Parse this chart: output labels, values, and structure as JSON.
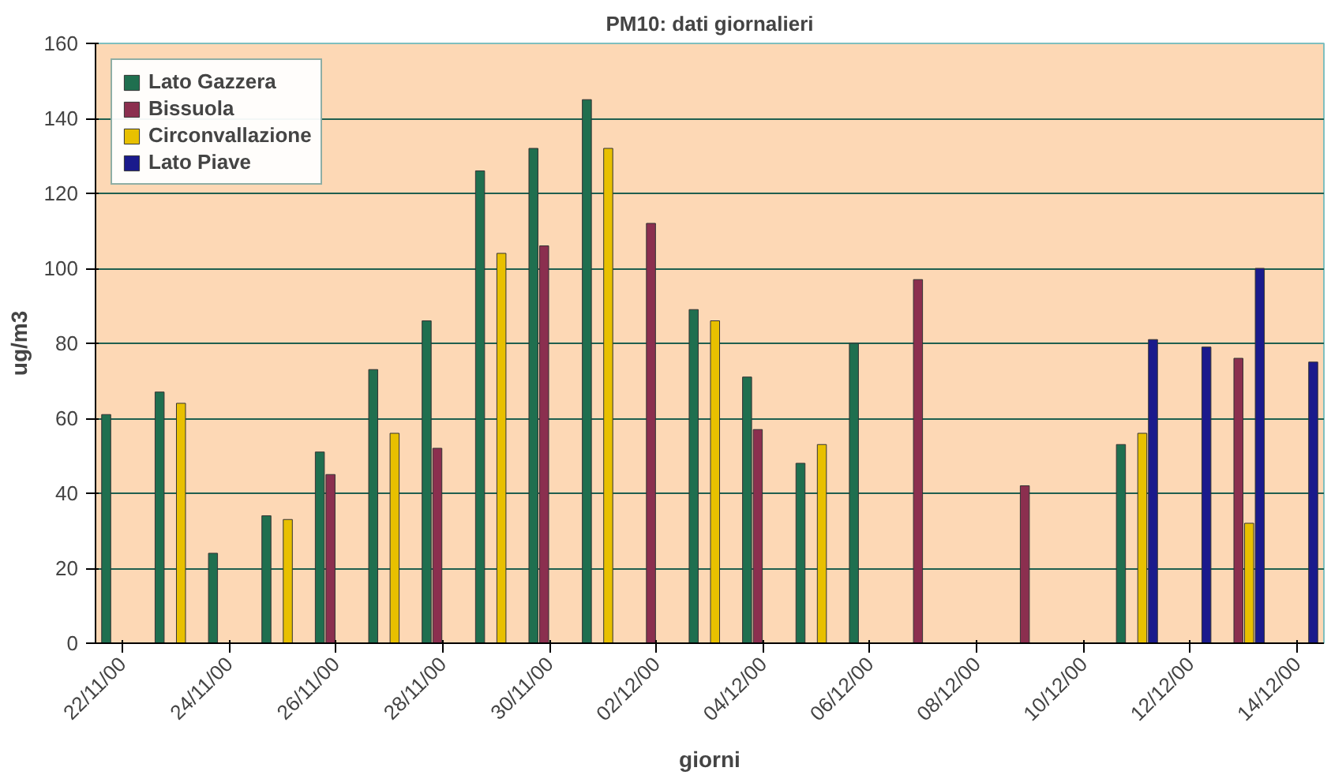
{
  "chart_data": {
    "type": "bar",
    "title": "PM10: dati giornalieri",
    "xlabel": "giorni",
    "ylabel": "ug/m3",
    "categories": [
      "22/11/00",
      null,
      "24/11/00",
      null,
      "26/11/00",
      null,
      "28/11/00",
      null,
      "30/11/00",
      null,
      "02/12/00",
      null,
      "04/12/00",
      null,
      "06/12/00",
      null,
      "08/12/00",
      null,
      "10/12/00",
      null,
      "12/12/00",
      null,
      "14/12/00"
    ],
    "series": [
      {
        "name": "Lato Gazzera",
        "color": "#1f6f4f",
        "values": [
          61,
          67,
          24,
          34,
          51,
          73,
          86,
          126,
          132,
          145,
          null,
          89,
          71,
          48,
          80,
          null,
          null,
          null,
          null,
          53,
          null,
          null,
          null
        ]
      },
      {
        "name": "Bissuola",
        "color": "#8b2f4f",
        "values": [
          null,
          null,
          null,
          null,
          45,
          null,
          52,
          null,
          106,
          null,
          112,
          null,
          57,
          null,
          null,
          97,
          null,
          42,
          null,
          null,
          null,
          76,
          null
        ]
      },
      {
        "name": "Circonvallazione",
        "color": "#e8c000",
        "values": [
          null,
          64,
          null,
          33,
          null,
          56,
          null,
          104,
          null,
          132,
          null,
          86,
          null,
          53,
          null,
          null,
          null,
          null,
          null,
          56,
          null,
          32,
          null
        ]
      },
      {
        "name": "Lato Piave",
        "color": "#1a1a8c",
        "values": [
          null,
          null,
          null,
          null,
          null,
          null,
          null,
          null,
          null,
          null,
          null,
          null,
          null,
          null,
          null,
          null,
          null,
          null,
          null,
          81,
          79,
          100,
          75
        ]
      }
    ],
    "ylim": [
      0,
      160
    ],
    "yticks": [
      0,
      20,
      40,
      60,
      80,
      100,
      120,
      140,
      160
    ],
    "grid": "y",
    "legend": "top left"
  }
}
